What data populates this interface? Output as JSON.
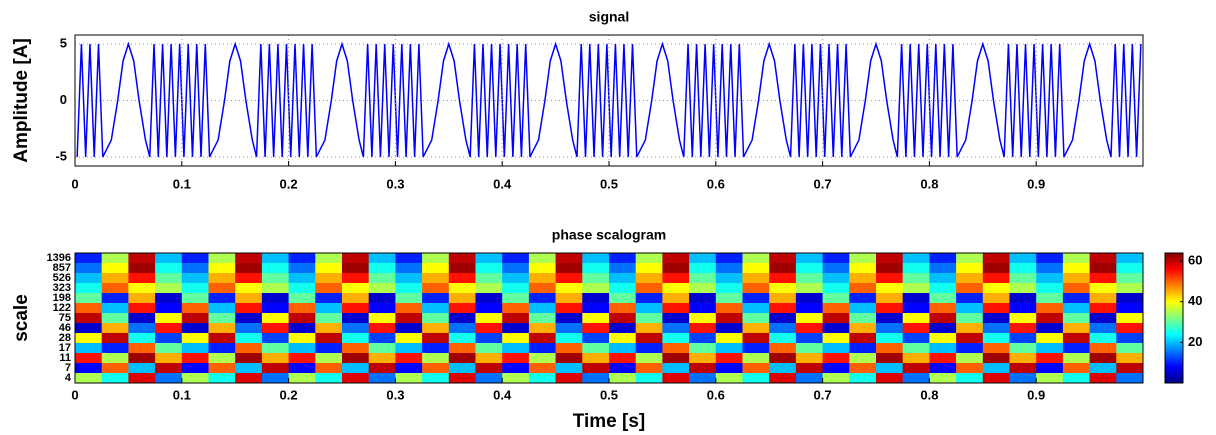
{
  "chart_data": [
    {
      "type": "line",
      "title": "signal",
      "ylabel": "Amplitude [A]",
      "color": "#0000ff",
      "grid": true,
      "xlim": [
        0,
        1
      ],
      "xticks": [
        0,
        0.1,
        0.2,
        0.3,
        0.4,
        0.5,
        0.6,
        0.7,
        0.8,
        0.9
      ],
      "ylim": [
        -5.8,
        5.8
      ],
      "yticks": [
        -5,
        0,
        5
      ],
      "x": [
        0.002,
        0.006,
        0.01,
        0.014,
        0.018,
        0.022,
        0.026,
        0.034,
        0.04,
        0.045,
        0.05,
        0.055,
        0.06,
        0.066,
        0.07,
        0.074,
        0.078,
        0.082,
        0.086,
        0.09,
        0.094,
        0.098,
        0.102,
        0.106,
        0.11,
        0.114,
        0.118,
        0.122,
        0.126,
        0.134,
        0.14,
        0.145,
        0.15,
        0.155,
        0.16,
        0.166,
        0.17,
        0.174,
        0.178,
        0.182,
        0.186,
        0.19,
        0.194,
        0.198,
        0.202,
        0.206,
        0.21,
        0.214,
        0.218,
        0.222,
        0.226,
        0.234,
        0.24,
        0.245,
        0.25,
        0.255,
        0.26,
        0.266,
        0.27,
        0.274,
        0.278,
        0.282,
        0.286,
        0.29,
        0.294,
        0.298,
        0.302,
        0.306,
        0.31,
        0.314,
        0.318,
        0.322,
        0.326,
        0.334,
        0.34,
        0.345,
        0.35,
        0.355,
        0.36,
        0.366,
        0.37,
        0.374,
        0.378,
        0.382,
        0.386,
        0.39,
        0.394,
        0.398,
        0.402,
        0.406,
        0.41,
        0.414,
        0.418,
        0.422,
        0.426,
        0.434,
        0.44,
        0.445,
        0.45,
        0.455,
        0.46,
        0.466,
        0.47,
        0.474,
        0.478,
        0.482,
        0.486,
        0.49,
        0.494,
        0.498,
        0.502,
        0.506,
        0.51,
        0.514,
        0.518,
        0.522,
        0.526,
        0.534,
        0.54,
        0.545,
        0.55,
        0.555,
        0.56,
        0.566,
        0.57,
        0.574,
        0.578,
        0.582,
        0.586,
        0.59,
        0.594,
        0.598,
        0.602,
        0.606,
        0.61,
        0.614,
        0.618,
        0.622,
        0.626,
        0.634,
        0.64,
        0.645,
        0.65,
        0.655,
        0.66,
        0.666,
        0.67,
        0.674,
        0.678,
        0.682,
        0.686,
        0.69,
        0.694,
        0.698,
        0.702,
        0.706,
        0.71,
        0.714,
        0.718,
        0.722,
        0.726,
        0.734,
        0.74,
        0.745,
        0.75,
        0.755,
        0.76,
        0.766,
        0.77,
        0.774,
        0.778,
        0.782,
        0.786,
        0.79,
        0.794,
        0.798,
        0.802,
        0.806,
        0.81,
        0.814,
        0.818,
        0.822,
        0.826,
        0.834,
        0.84,
        0.845,
        0.85,
        0.855,
        0.86,
        0.866,
        0.87,
        0.874,
        0.878,
        0.882,
        0.886,
        0.89,
        0.894,
        0.898,
        0.902,
        0.906,
        0.91,
        0.914,
        0.918,
        0.922,
        0.926,
        0.934,
        0.94,
        0.945,
        0.95,
        0.955,
        0.96,
        0.966,
        0.97,
        0.974,
        0.978,
        0.982,
        0.986,
        0.99,
        0.994,
        0.998
      ],
      "values": [
        -5,
        5,
        -5,
        5,
        -5,
        5,
        -5,
        -3.5,
        0,
        3.5,
        5,
        3.5,
        0,
        -3.5,
        -5,
        5,
        -5,
        5,
        -5,
        5,
        -5,
        5,
        -5,
        5,
        -5,
        5,
        -5,
        5,
        -5,
        -3.5,
        0,
        3.5,
        5,
        3.5,
        0,
        -3.5,
        -5,
        5,
        -5,
        5,
        -5,
        5,
        -5,
        5,
        -5,
        5,
        -5,
        5,
        -5,
        5,
        -5,
        -3.5,
        0,
        3.5,
        5,
        3.5,
        0,
        -3.5,
        -5,
        5,
        -5,
        5,
        -5,
        5,
        -5,
        5,
        -5,
        5,
        -5,
        5,
        -5,
        5,
        -5,
        -3.5,
        0,
        3.5,
        5,
        3.5,
        0,
        -3.5,
        -5,
        5,
        -5,
        5,
        -5,
        5,
        -5,
        5,
        -5,
        5,
        -5,
        5,
        -5,
        5,
        -5,
        -3.5,
        0,
        3.5,
        5,
        3.5,
        0,
        -3.5,
        -5,
        5,
        -5,
        5,
        -5,
        5,
        -5,
        5,
        -5,
        5,
        -5,
        5,
        -5,
        5,
        -5,
        -3.5,
        0,
        3.5,
        5,
        3.5,
        0,
        -3.5,
        -5,
        5,
        -5,
        5,
        -5,
        5,
        -5,
        5,
        -5,
        5,
        -5,
        5,
        -5,
        5,
        -5,
        -3.5,
        0,
        3.5,
        5,
        3.5,
        0,
        -3.5,
        -5,
        5,
        -5,
        5,
        -5,
        5,
        -5,
        5,
        -5,
        5,
        -5,
        5,
        -5,
        5,
        -5,
        -3.5,
        0,
        3.5,
        5,
        3.5,
        0,
        -3.5,
        -5,
        5,
        -5,
        5,
        -5,
        5,
        -5,
        5,
        -5,
        5,
        -5,
        5,
        -5,
        5,
        -5,
        -3.5,
        0,
        3.5,
        5,
        3.5,
        0,
        -3.5,
        -5,
        5,
        -5,
        5,
        -5,
        5,
        -5,
        5,
        -5,
        5,
        -5,
        5,
        -5,
        5,
        -5,
        -3.5,
        0,
        3.5,
        5,
        3.5,
        0,
        -3.5,
        -5,
        5,
        -5,
        5,
        -5,
        5,
        -5,
        5
      ]
    },
    {
      "type": "heatmap",
      "title": "phase scalogram",
      "ylabel": "scale",
      "xlabel": "Time [s]",
      "colormap": "jet",
      "xlim": [
        0,
        1
      ],
      "xticks": [
        0,
        0.1,
        0.2,
        0.3,
        0.4,
        0.5,
        0.6,
        0.7,
        0.8,
        0.9
      ],
      "zlim": [
        0,
        64
      ],
      "zticks": [
        20,
        40,
        60
      ],
      "x": [
        0,
        0.025,
        0.05,
        0.075,
        0.1,
        0.125,
        0.15,
        0.175,
        0.2,
        0.225,
        0.25,
        0.275,
        0.3,
        0.325,
        0.35,
        0.375,
        0.4,
        0.425,
        0.45,
        0.475,
        0.5,
        0.525,
        0.55,
        0.575,
        0.6,
        0.625,
        0.65,
        0.675,
        0.7,
        0.725,
        0.75,
        0.775,
        0.8,
        0.825,
        0.85,
        0.875,
        0.9,
        0.925,
        0.95,
        0.975
      ],
      "y": [
        1396,
        857,
        526,
        323,
        198,
        122,
        75,
        46,
        28,
        17,
        11,
        7,
        4
      ],
      "z": [
        [
          10,
          35,
          60,
          20,
          10,
          35,
          60,
          20,
          10,
          35,
          60,
          20,
          10,
          35,
          60,
          20,
          10,
          35,
          60,
          20,
          10,
          35,
          60,
          20,
          10,
          35,
          60,
          20,
          10,
          35,
          60,
          20,
          10,
          35,
          60,
          20,
          10,
          35,
          60,
          20
        ],
        [
          15,
          40,
          62,
          25,
          15,
          40,
          62,
          25,
          15,
          40,
          62,
          25,
          15,
          40,
          62,
          25,
          15,
          40,
          62,
          25,
          15,
          40,
          62,
          25,
          15,
          40,
          62,
          25,
          15,
          40,
          62,
          25,
          15,
          40,
          62,
          25,
          15,
          40,
          62,
          25
        ],
        [
          20,
          45,
          55,
          30,
          20,
          45,
          55,
          30,
          20,
          45,
          55,
          30,
          20,
          45,
          55,
          30,
          20,
          45,
          55,
          30,
          20,
          45,
          55,
          30,
          20,
          45,
          55,
          30,
          20,
          45,
          55,
          30,
          20,
          45,
          55,
          30,
          20,
          45,
          55,
          30
        ],
        [
          25,
          50,
          40,
          35,
          25,
          50,
          40,
          35,
          25,
          50,
          40,
          35,
          25,
          50,
          40,
          35,
          25,
          50,
          40,
          35,
          25,
          50,
          40,
          35,
          25,
          50,
          40,
          35,
          25,
          50,
          40,
          35,
          25,
          50,
          40,
          35,
          25,
          50,
          40,
          35
        ],
        [
          30,
          10,
          45,
          5,
          30,
          10,
          45,
          5,
          30,
          10,
          45,
          5,
          30,
          10,
          45,
          5,
          30,
          10,
          45,
          5,
          30,
          10,
          45,
          5,
          30,
          10,
          45,
          5,
          30,
          10,
          45,
          5,
          30,
          10,
          45,
          5,
          30,
          10,
          45,
          5
        ],
        [
          50,
          20,
          55,
          8,
          50,
          20,
          55,
          8,
          50,
          20,
          55,
          8,
          50,
          20,
          55,
          8,
          50,
          20,
          55,
          8,
          50,
          20,
          55,
          8,
          50,
          20,
          55,
          8,
          50,
          20,
          55,
          8,
          50,
          20,
          55,
          8,
          50,
          20,
          55,
          8
        ],
        [
          60,
          30,
          5,
          40,
          60,
          30,
          5,
          40,
          60,
          30,
          5,
          40,
          60,
          30,
          5,
          40,
          60,
          30,
          5,
          40,
          60,
          30,
          5,
          40,
          60,
          30,
          5,
          40,
          60,
          30,
          5,
          40,
          60,
          30,
          5,
          40,
          60,
          30,
          5,
          40
        ],
        [
          5,
          45,
          15,
          55,
          5,
          45,
          15,
          55,
          5,
          45,
          15,
          55,
          5,
          45,
          15,
          55,
          5,
          45,
          15,
          55,
          5,
          45,
          15,
          55,
          5,
          45,
          15,
          55,
          5,
          45,
          15,
          55,
          5,
          45,
          15,
          55,
          5,
          45,
          15,
          55
        ],
        [
          40,
          60,
          25,
          12,
          40,
          60,
          25,
          12,
          40,
          60,
          25,
          12,
          40,
          60,
          25,
          12,
          40,
          60,
          25,
          12,
          40,
          60,
          25,
          12,
          40,
          60,
          25,
          12,
          40,
          60,
          25,
          12,
          40,
          60,
          25,
          12,
          40,
          60,
          25,
          12
        ],
        [
          20,
          10,
          50,
          30,
          20,
          10,
          50,
          30,
          20,
          10,
          50,
          30,
          20,
          10,
          50,
          30,
          20,
          10,
          50,
          30,
          20,
          10,
          50,
          30,
          20,
          10,
          50,
          30,
          20,
          10,
          50,
          30,
          20,
          10,
          50,
          30,
          20,
          10,
          50,
          30
        ],
        [
          55,
          35,
          62,
          45,
          55,
          35,
          62,
          45,
          55,
          35,
          62,
          45,
          55,
          35,
          62,
          45,
          55,
          35,
          62,
          45,
          55,
          35,
          62,
          45,
          55,
          35,
          62,
          45,
          55,
          35,
          62,
          45,
          55,
          35,
          62,
          45,
          55,
          35,
          62,
          45
        ],
        [
          8,
          50,
          20,
          60,
          8,
          50,
          20,
          60,
          8,
          50,
          20,
          60,
          8,
          50,
          20,
          60,
          8,
          50,
          20,
          60,
          8,
          50,
          20,
          60,
          8,
          50,
          20,
          60,
          8,
          50,
          20,
          60,
          8,
          50,
          20,
          60,
          8,
          50,
          20,
          60
        ],
        [
          35,
          25,
          58,
          15,
          35,
          25,
          58,
          15,
          35,
          25,
          58,
          15,
          35,
          25,
          58,
          15,
          35,
          25,
          58,
          15,
          35,
          25,
          58,
          15,
          35,
          25,
          58,
          15,
          35,
          25,
          58,
          15,
          35,
          25,
          58,
          15,
          35,
          25,
          58,
          15
        ]
      ]
    }
  ]
}
